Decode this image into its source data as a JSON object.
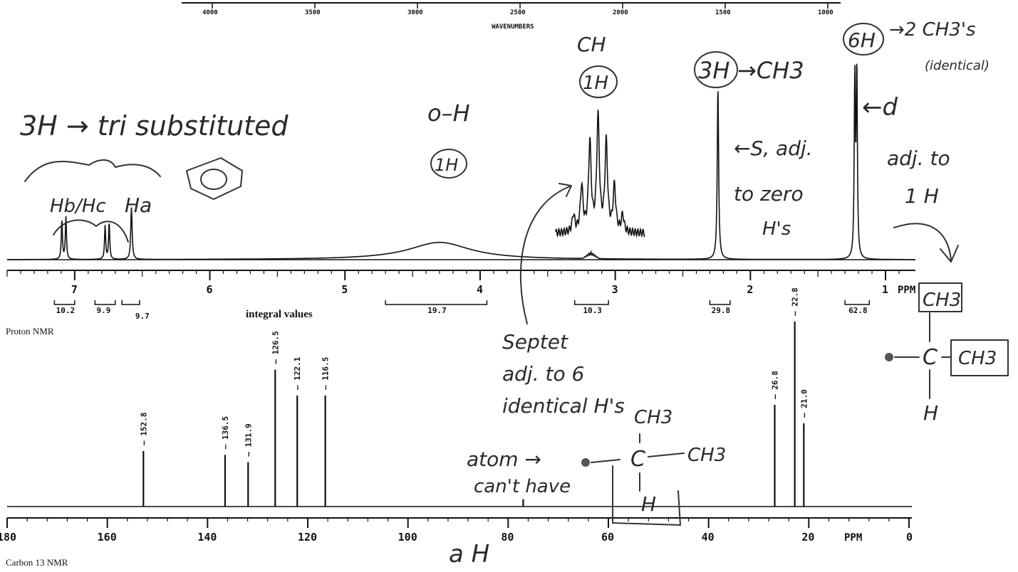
{
  "chart_data": [
    {
      "type": "line",
      "ir_axis_label": "WAVENUMBERS",
      "ir_ticks": [
        "4000",
        "3500",
        "3000",
        "2500",
        "2000",
        "1500",
        "1000"
      ]
    },
    {
      "type": "line",
      "caption": "Proton NMR",
      "axis_unit": "PPM",
      "xlim": [
        7.5,
        0.9
      ],
      "ticks": [
        7,
        6,
        5,
        4,
        3,
        2,
        1
      ],
      "integral_caption": "integral values",
      "integrals": [
        {
          "from": 7.15,
          "to": 7.0,
          "label": "10.2"
        },
        {
          "from": 6.85,
          "to": 6.7,
          "label": "9.9"
        },
        {
          "from": 6.65,
          "to": 6.52,
          "label": "9.7"
        },
        {
          "from": 4.7,
          "to": 3.95,
          "label": "19.7"
        },
        {
          "from": 3.3,
          "to": 3.05,
          "label": "10.3"
        },
        {
          "from": 2.3,
          "to": 2.15,
          "label": "29.8"
        },
        {
          "from": 1.3,
          "to": 1.12,
          "label": "62.8"
        }
      ],
      "peaks": [
        {
          "ppm": 7.08,
          "height": 0.22,
          "shape": "doublet",
          "sep": 0.03
        },
        {
          "ppm": 6.76,
          "height": 0.19,
          "shape": "doublet",
          "sep": 0.03
        },
        {
          "ppm": 6.58,
          "height": 0.27,
          "shape": "singlet"
        },
        {
          "ppm": 4.3,
          "height": 0.09,
          "shape": "broad"
        },
        {
          "ppm": 3.18,
          "height": 0.03,
          "shape": "multiplet"
        },
        {
          "ppm": 2.24,
          "height": 0.9,
          "shape": "singlet"
        },
        {
          "ppm": 1.22,
          "height": 1.0,
          "shape": "doublet",
          "sep": 0.015
        }
      ],
      "inset": {
        "label": "septet",
        "peak_heights": [
          0.15,
          0.4,
          0.78,
          1.0,
          0.78,
          0.4,
          0.15
        ]
      }
    },
    {
      "type": "line",
      "caption": "Carbon 13 NMR",
      "axis_unit": "PPM",
      "xlim": [
        180,
        0
      ],
      "ticks": [
        180,
        160,
        140,
        120,
        100,
        80,
        60,
        40,
        20,
        0
      ],
      "peaks": [
        {
          "ppm": 152.8,
          "label": "152.8",
          "height": 0.3
        },
        {
          "ppm": 136.5,
          "label": "136.5",
          "height": 0.28
        },
        {
          "ppm": 131.9,
          "label": "131.9",
          "height": 0.24
        },
        {
          "ppm": 126.5,
          "label": "126.5",
          "height": 0.74
        },
        {
          "ppm": 122.1,
          "label": "122.1",
          "height": 0.6
        },
        {
          "ppm": 116.5,
          "label": "116.5",
          "height": 0.6
        },
        {
          "ppm": 77.0,
          "label": "",
          "height": 0.04
        },
        {
          "ppm": 26.8,
          "label": "26.8",
          "height": 0.55
        },
        {
          "ppm": 22.8,
          "label": "22.8",
          "height": 1.0
        },
        {
          "ppm": 21.0,
          "label": "21.0",
          "height": 0.45
        }
      ]
    }
  ],
  "annotations": {
    "aromatic": "3H → tri substituted",
    "hb_hc": "Hb/Hc",
    "ha": "Ha",
    "oh_label": "o–H",
    "oh_count": "1H",
    "ch_label": "CH",
    "ch_count": "1H",
    "singlet_count": "3H",
    "singlet_group": "→CH3",
    "singlet_note_1": "←S, adj.",
    "singlet_note_2": "to zero",
    "singlet_note_3": "H's",
    "doublet_count": "6H",
    "doublet_group": "→2 CH3's",
    "doublet_group_2": "(identical)",
    "doublet_mark": "←d",
    "doublet_note_1": "adj. to",
    "doublet_note_2": "1 H",
    "septet_1": "Septet",
    "septet_2": "adj. to 6",
    "septet_3": "identical H's",
    "atom_1": "atom →",
    "atom_2": "can't have",
    "atom_3": "a H",
    "frag_ch3_top": "CH3",
    "frag_c": "C",
    "frag_ch3_right": "CH3",
    "frag_h": "H",
    "frag2_ch3_top": "CH3",
    "frag2_c": "C",
    "frag2_ch3_right": "CH3",
    "frag2_h": "H"
  }
}
